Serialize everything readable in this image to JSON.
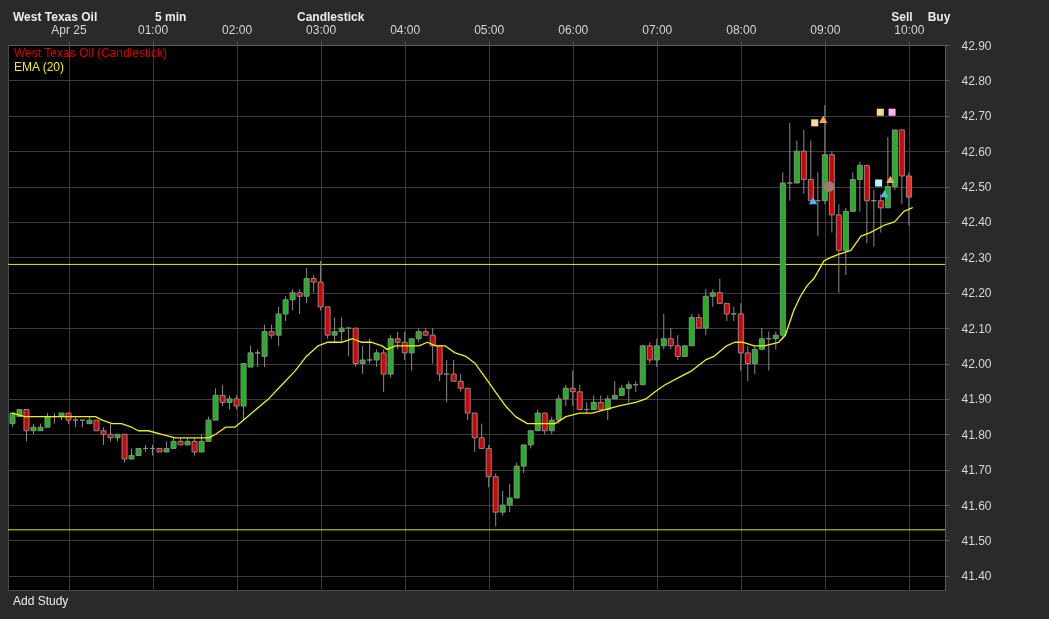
{
  "chart_data": {
    "type": "candlestick",
    "xlim": [
      -0.72,
      10.43
    ],
    "ylim": [
      41.36,
      42.9
    ],
    "xticks": [
      {
        "value": 0,
        "label": "Apr 25"
      },
      {
        "value": 1,
        "label": "01:00"
      },
      {
        "value": 2,
        "label": "02:00"
      },
      {
        "value": 3,
        "label": "03:00"
      },
      {
        "value": 4,
        "label": "04:00"
      },
      {
        "value": 5,
        "label": "05:00"
      },
      {
        "value": 6,
        "label": "06:00"
      },
      {
        "value": 7,
        "label": "07:00"
      },
      {
        "value": 8,
        "label": "08:00"
      },
      {
        "value": 9,
        "label": "09:00"
      },
      {
        "value": 10,
        "label": "10:00"
      }
    ],
    "yticks": [
      {
        "value": 41.4,
        "label": "41.40"
      },
      {
        "value": 41.5,
        "label": "41.50"
      },
      {
        "value": 41.6,
        "label": "41.60"
      },
      {
        "value": 41.7,
        "label": "41.70"
      },
      {
        "value": 41.8,
        "label": "41.80"
      },
      {
        "value": 41.9,
        "label": "41.90"
      },
      {
        "value": 42.0,
        "label": "42.00"
      },
      {
        "value": 42.1,
        "label": "42.10"
      },
      {
        "value": 42.2,
        "label": "42.20"
      },
      {
        "value": 42.3,
        "label": "42.30"
      },
      {
        "value": 42.4,
        "label": "42.40"
      },
      {
        "value": 42.5,
        "label": "42.50"
      },
      {
        "value": 42.6,
        "label": "42.60"
      },
      {
        "value": 42.7,
        "label": "42.70"
      },
      {
        "value": 42.8,
        "label": "42.80"
      },
      {
        "value": 42.9,
        "label": "42.90"
      }
    ],
    "grid": true,
    "legend": "top left",
    "ref_lines": [
      {
        "axis": "y",
        "value": 42.28,
        "color": "#e8e800"
      },
      {
        "axis": "y",
        "value": 41.53,
        "color": "#e8e800"
      }
    ],
    "annotations": [
      "West Texas Oil",
      "5 min",
      "Candlestick",
      "Sell",
      "Buy",
      "Add Study"
    ],
    "series": [
      {
        "name": "West Texas Oil (Candlestick)",
        "color": "#d80000",
        "x": [
          -0.6667,
          -0.5833,
          -0.5,
          -0.4167,
          -0.3333,
          -0.25,
          -0.1667,
          -0.0833,
          0,
          0.0833,
          0.1667,
          0.25,
          0.3333,
          0.4167,
          0.5,
          0.5833,
          0.6667,
          0.75,
          0.8333,
          0.9167,
          1,
          1.0833,
          1.1667,
          1.25,
          1.3333,
          1.4167,
          1.5,
          1.5833,
          1.6667,
          1.75,
          1.8333,
          1.9167,
          2,
          2.0833,
          2.1667,
          2.25,
          2.3333,
          2.4167,
          2.5,
          2.5833,
          2.6667,
          2.75,
          2.8333,
          2.9167,
          3,
          3.0833,
          3.1667,
          3.25,
          3.3333,
          3.4167,
          3.5,
          3.5833,
          3.6667,
          3.75,
          3.8333,
          3.9167,
          4,
          4.0833,
          4.1667,
          4.25,
          4.3333,
          4.4167,
          4.5,
          4.5833,
          4.6667,
          4.75,
          4.8333,
          4.9167,
          5,
          5.0833,
          5.1667,
          5.25,
          5.3333,
          5.4167,
          5.5,
          5.5833,
          5.6667,
          5.75,
          5.8333,
          5.9167,
          6,
          6.0833,
          6.1667,
          6.25,
          6.3333,
          6.4167,
          6.5,
          6.5833,
          6.6667,
          6.75,
          6.8333,
          6.9167,
          7,
          7.0833,
          7.1667,
          7.25,
          7.3333,
          7.4167,
          7.5,
          7.5833,
          7.6667,
          7.75,
          7.8333,
          7.9167,
          8,
          8.0833,
          8.1667,
          8.25,
          8.3333,
          8.4167,
          8.5,
          8.5833,
          8.6667,
          8.75,
          8.8333,
          8.9167,
          9,
          9.0833,
          9.1667,
          9.25,
          9.3333,
          9.4167,
          9.5,
          9.5833,
          9.6667,
          9.75,
          9.8333,
          9.9167,
          10
        ],
        "ohlc": [
          [
            41.83,
            41.86,
            41.82,
            41.86
          ],
          [
            41.85,
            41.87,
            41.85,
            41.87
          ],
          [
            41.87,
            41.87,
            41.78,
            41.81
          ],
          [
            41.81,
            41.83,
            41.8,
            41.82
          ],
          [
            41.81,
            41.83,
            41.81,
            41.82
          ],
          [
            41.82,
            41.86,
            41.82,
            41.85
          ],
          [
            41.85,
            41.86,
            41.83,
            41.85
          ],
          [
            41.85,
            41.86,
            41.84,
            41.86
          ],
          [
            41.86,
            41.86,
            41.83,
            41.84
          ],
          [
            41.84,
            41.85,
            41.82,
            41.84
          ],
          [
            41.84,
            41.84,
            41.82,
            41.84
          ],
          [
            41.83,
            41.85,
            41.83,
            41.84
          ],
          [
            41.84,
            41.84,
            41.81,
            41.81
          ],
          [
            41.81,
            41.82,
            41.77,
            41.8
          ],
          [
            41.8,
            41.83,
            41.78,
            41.79
          ],
          [
            41.79,
            41.8,
            41.78,
            41.8
          ],
          [
            41.8,
            41.8,
            41.72,
            41.73
          ],
          [
            41.73,
            41.76,
            41.73,
            41.74
          ],
          [
            41.74,
            41.76,
            41.74,
            41.76
          ],
          [
            41.76,
            41.77,
            41.75,
            41.76
          ],
          [
            41.76,
            41.77,
            41.74,
            41.76
          ],
          [
            41.76,
            41.76,
            41.75,
            41.75
          ],
          [
            41.75,
            41.78,
            41.75,
            41.76
          ],
          [
            41.76,
            41.79,
            41.76,
            41.78
          ],
          [
            41.78,
            41.79,
            41.77,
            41.77
          ],
          [
            41.77,
            41.79,
            41.77,
            41.78
          ],
          [
            41.78,
            41.79,
            41.74,
            41.75
          ],
          [
            41.75,
            41.8,
            41.75,
            41.78
          ],
          [
            41.78,
            41.85,
            41.78,
            41.84
          ],
          [
            41.84,
            41.93,
            41.84,
            41.91
          ],
          [
            41.91,
            41.94,
            41.88,
            41.89
          ],
          [
            41.89,
            41.91,
            41.87,
            41.9
          ],
          [
            41.9,
            41.91,
            41.87,
            41.88
          ],
          [
            41.88,
            42.0,
            41.84,
            42.0
          ],
          [
            41.99,
            42.05,
            41.99,
            42.03
          ],
          [
            42.03,
            42.04,
            41.99,
            42.03
          ],
          [
            42.02,
            42.11,
            41.99,
            42.09
          ],
          [
            42.09,
            42.11,
            42.07,
            42.08
          ],
          [
            42.08,
            42.16,
            42.05,
            42.14
          ],
          [
            42.14,
            42.19,
            42.12,
            42.18
          ],
          [
            42.18,
            42.21,
            42.15,
            42.2
          ],
          [
            42.2,
            42.21,
            42.14,
            42.19
          ],
          [
            42.19,
            42.27,
            42.17,
            42.24
          ],
          [
            42.24,
            42.25,
            42.2,
            42.23
          ],
          [
            42.23,
            42.29,
            42.15,
            42.16
          ],
          [
            42.16,
            42.16,
            42.07,
            42.08
          ],
          [
            42.08,
            42.13,
            42.06,
            42.09
          ],
          [
            42.09,
            42.13,
            42.06,
            42.1
          ],
          [
            42.1,
            42.1,
            42.02,
            42.1
          ],
          [
            42.1,
            42.1,
            41.99,
            42.0
          ],
          [
            42.0,
            42.05,
            41.97,
            42.01
          ],
          [
            42.01,
            42.07,
            42.0,
            42.01
          ],
          [
            42.01,
            42.04,
            41.99,
            42.03
          ],
          [
            42.03,
            42.04,
            41.92,
            41.97
          ],
          [
            41.97,
            42.08,
            41.96,
            42.07
          ],
          [
            42.07,
            42.09,
            42.04,
            42.06
          ],
          [
            42.06,
            42.09,
            42.01,
            42.03
          ],
          [
            42.03,
            42.07,
            41.98,
            42.07
          ],
          [
            42.07,
            42.1,
            42.06,
            42.09
          ],
          [
            42.09,
            42.1,
            42.08,
            42.08
          ],
          [
            42.08,
            42.1,
            42.0,
            42.05
          ],
          [
            42.05,
            42.05,
            41.95,
            41.97
          ],
          [
            41.97,
            42.01,
            41.89,
            41.97
          ],
          [
            41.97,
            42.01,
            41.95,
            41.95
          ],
          [
            41.95,
            41.97,
            41.92,
            41.93
          ],
          [
            41.93,
            41.93,
            41.84,
            41.86
          ],
          [
            41.86,
            41.86,
            41.75,
            41.79
          ],
          [
            41.79,
            41.83,
            41.76,
            41.76
          ],
          [
            41.76,
            41.77,
            41.65,
            41.68
          ],
          [
            41.68,
            41.69,
            41.54,
            41.58
          ],
          [
            41.58,
            41.64,
            41.57,
            41.6
          ],
          [
            41.6,
            41.66,
            41.58,
            41.62
          ],
          [
            41.62,
            41.72,
            41.62,
            41.71
          ],
          [
            41.71,
            41.77,
            41.69,
            41.77
          ],
          [
            41.77,
            41.81,
            41.76,
            41.81
          ],
          [
            41.81,
            41.87,
            41.81,
            41.86
          ],
          [
            41.86,
            41.86,
            41.8,
            41.81
          ],
          [
            41.81,
            41.85,
            41.8,
            41.84
          ],
          [
            41.84,
            41.91,
            41.83,
            41.9
          ],
          [
            41.9,
            41.94,
            41.88,
            41.93
          ],
          [
            41.93,
            41.98,
            41.88,
            41.92
          ],
          [
            41.92,
            41.94,
            41.87,
            41.87
          ],
          [
            41.87,
            41.89,
            41.86,
            41.87
          ],
          [
            41.87,
            41.91,
            41.87,
            41.89
          ],
          [
            41.89,
            41.91,
            41.87,
            41.87
          ],
          [
            41.87,
            41.91,
            41.84,
            41.9
          ],
          [
            41.9,
            41.95,
            41.9,
            41.91
          ],
          [
            41.91,
            41.94,
            41.91,
            41.93
          ],
          [
            41.93,
            41.95,
            41.89,
            41.94
          ],
          [
            41.94,
            41.95,
            41.92,
            41.94
          ],
          [
            41.94,
            42.05,
            41.94,
            42.05
          ],
          [
            42.05,
            42.06,
            42.0,
            42.01
          ],
          [
            42.01,
            42.07,
            41.99,
            42.05
          ],
          [
            42.05,
            42.14,
            42.04,
            42.07
          ],
          [
            42.07,
            42.1,
            42.04,
            42.05
          ],
          [
            42.05,
            42.08,
            42.01,
            42.02
          ],
          [
            42.02,
            42.05,
            42.02,
            42.05
          ],
          [
            42.05,
            42.14,
            42.05,
            42.13
          ],
          [
            42.13,
            42.14,
            42.1,
            42.1
          ],
          [
            42.1,
            42.21,
            42.08,
            42.19
          ],
          [
            42.19,
            42.21,
            42.16,
            42.2
          ],
          [
            42.2,
            42.24,
            42.17,
            42.17
          ],
          [
            42.17,
            42.17,
            42.12,
            42.14
          ],
          [
            42.14,
            42.16,
            42.12,
            42.14
          ],
          [
            42.14,
            42.17,
            41.98,
            42.03
          ],
          [
            42.03,
            42.05,
            41.95,
            42.0
          ],
          [
            42.0,
            42.05,
            41.97,
            42.04
          ],
          [
            42.04,
            42.1,
            42.04,
            42.07
          ],
          [
            42.07,
            42.09,
            41.98,
            42.07
          ],
          [
            42.07,
            42.09,
            42.04,
            42.08
          ],
          [
            42.08,
            42.54,
            42.07,
            42.51
          ],
          [
            42.51,
            42.68,
            42.46,
            42.51
          ],
          [
            42.51,
            42.63,
            42.51,
            42.6
          ],
          [
            42.6,
            42.66,
            42.48,
            42.52
          ],
          [
            42.52,
            42.63,
            42.45,
            42.46
          ],
          [
            42.46,
            42.54,
            42.36,
            42.46
          ],
          [
            42.46,
            42.73,
            42.45,
            42.59
          ],
          [
            42.59,
            42.6,
            42.37,
            42.42
          ],
          [
            42.42,
            42.45,
            42.2,
            42.32
          ],
          [
            42.32,
            42.44,
            42.25,
            42.43
          ],
          [
            42.43,
            42.54,
            42.43,
            42.52
          ],
          [
            42.52,
            42.57,
            42.43,
            42.56
          ],
          [
            42.56,
            42.56,
            42.34,
            42.46
          ],
          [
            42.46,
            42.49,
            42.33,
            42.46
          ],
          [
            42.46,
            42.48,
            42.37,
            42.44
          ],
          [
            42.44,
            42.64,
            42.44,
            42.5
          ],
          [
            42.5,
            42.66,
            42.49,
            42.66
          ],
          [
            42.66,
            42.66,
            42.45,
            42.53
          ],
          [
            42.53,
            42.54,
            42.39,
            42.47
          ]
        ],
        "colors": [
          "#1db51d",
          "#1db51d",
          "#d80000",
          "#1db51d",
          "#1db51d",
          "#1db51d",
          "#8a8a8a",
          "#1db51d",
          "#d80000",
          "#8a8a8a",
          "#8a8a8a",
          "#1db51d",
          "#d80000",
          "#d80000",
          "#d80000",
          "#1db51d",
          "#d80000",
          "#1db51d",
          "#1db51d",
          "#8a8a8a",
          "#8a8a8a",
          "#d80000",
          "#1db51d",
          "#1db51d",
          "#d80000",
          "#1db51d",
          "#d80000",
          "#1db51d",
          "#1db51d",
          "#1db51d",
          "#d80000",
          "#1db51d",
          "#d80000",
          "#1db51d",
          "#1db51d",
          "#8a8a8a",
          "#1db51d",
          "#d80000",
          "#1db51d",
          "#1db51d",
          "#1db51d",
          "#d80000",
          "#1db51d",
          "#d80000",
          "#d80000",
          "#d80000",
          "#1db51d",
          "#1db51d",
          "#8a8a8a",
          "#d80000",
          "#1db51d",
          "#8a8a8a",
          "#1db51d",
          "#d80000",
          "#1db51d",
          "#d80000",
          "#d80000",
          "#1db51d",
          "#1db51d",
          "#d80000",
          "#d80000",
          "#d80000",
          "#8a8a8a",
          "#d80000",
          "#d80000",
          "#d80000",
          "#d80000",
          "#d80000",
          "#d80000",
          "#d80000",
          "#1db51d",
          "#1db51d",
          "#1db51d",
          "#1db51d",
          "#1db51d",
          "#1db51d",
          "#d80000",
          "#1db51d",
          "#1db51d",
          "#1db51d",
          "#d80000",
          "#d80000",
          "#8a8a8a",
          "#1db51d",
          "#d80000",
          "#1db51d",
          "#1db51d",
          "#1db51d",
          "#1db51d",
          "#8a8a8a",
          "#1db51d",
          "#d80000",
          "#1db51d",
          "#1db51d",
          "#d80000",
          "#d80000",
          "#1db51d",
          "#1db51d",
          "#d80000",
          "#1db51d",
          "#1db51d",
          "#d80000",
          "#d80000",
          "#8a8a8a",
          "#d80000",
          "#d80000",
          "#1db51d",
          "#1db51d",
          "#8a8a8a",
          "#1db51d",
          "#1db51d",
          "#8a8a8a",
          "#1db51d",
          "#d80000",
          "#d80000",
          "#8a8a8a",
          "#1db51d",
          "#d80000",
          "#d80000",
          "#1db51d",
          "#1db51d",
          "#1db51d",
          "#d80000",
          "#8a8a8a",
          "#d80000",
          "#1db51d",
          "#1db51d",
          "#d80000",
          "#ff2020"
        ]
      },
      {
        "name": "EMA (20)",
        "type": "line",
        "color": "#f2f200",
        "x": [
          -0.67,
          -0.52,
          -0.36,
          -0.16,
          0.04,
          0.32,
          0.4,
          0.52,
          0.63,
          0.75,
          0.83,
          0.95,
          1.11,
          1.27,
          1.43,
          1.55,
          1.67,
          1.75,
          1.87,
          1.98,
          2.08,
          2.23,
          2.38,
          2.54,
          2.7,
          2.83,
          2.97,
          3.08,
          3.25,
          3.38,
          3.49,
          3.61,
          3.73,
          3.79,
          3.89,
          4.01,
          4.17,
          4.27,
          4.37,
          4.48,
          4.6,
          4.73,
          4.84,
          4.96,
          5.08,
          5.2,
          5.32,
          5.46,
          5.63,
          5.79,
          5.92,
          6.08,
          6.23,
          6.39,
          6.55,
          6.75,
          6.87,
          6.98,
          7.1,
          7.26,
          7.42,
          7.58,
          7.68,
          7.83,
          7.93,
          8.03,
          8.16,
          8.28,
          8.45,
          8.53,
          8.63,
          8.71,
          8.79,
          8.87,
          8.99,
          9.07,
          9.18,
          9.31,
          9.43,
          9.54,
          9.7,
          9.83,
          9.94,
          10.04
        ],
        "values": [
          41.86,
          41.85,
          41.85,
          41.85,
          41.85,
          41.85,
          41.84,
          41.83,
          41.83,
          41.82,
          41.81,
          41.81,
          41.8,
          41.79,
          41.79,
          41.79,
          41.79,
          41.8,
          41.82,
          41.82,
          41.84,
          41.87,
          41.9,
          41.94,
          41.98,
          42.02,
          42.05,
          42.06,
          42.06,
          42.07,
          42.06,
          42.06,
          42.05,
          42.04,
          42.05,
          42.05,
          42.05,
          42.06,
          42.05,
          42.05,
          42.03,
          42.02,
          42.0,
          41.96,
          41.92,
          41.88,
          41.85,
          41.83,
          41.83,
          41.83,
          41.85,
          41.86,
          41.86,
          41.87,
          41.88,
          41.89,
          41.9,
          41.92,
          41.94,
          41.96,
          41.98,
          42.01,
          42.02,
          42.05,
          42.06,
          42.06,
          42.05,
          42.05,
          42.06,
          42.08,
          42.15,
          42.19,
          42.22,
          42.24,
          42.29,
          42.3,
          42.31,
          42.32,
          42.36,
          42.37,
          42.39,
          42.4,
          42.43,
          42.44
        ]
      },
      {
        "type": "scatter",
        "marker": "square",
        "color": "#ffd99a",
        "x": [
          8.88,
          9.66
        ],
        "values": [
          42.68,
          42.71
        ]
      },
      {
        "type": "scatter",
        "marker": "square",
        "color": "#f7b3f2",
        "x": [
          9.8
        ],
        "values": [
          42.71
        ]
      },
      {
        "type": "scatter",
        "marker": "square",
        "color": "#b3f2ff",
        "x": [
          9.64
        ],
        "values": [
          42.51
        ]
      },
      {
        "type": "scatter",
        "marker": "triangle",
        "color": "#f5a55a",
        "x": [
          8.98,
          9.78
        ],
        "values": [
          42.69,
          42.52
        ]
      },
      {
        "type": "scatter",
        "marker": "triangle",
        "color": "#5cb0ec",
        "x": [
          8.86,
          9.71
        ],
        "values": [
          42.46,
          42.48
        ]
      },
      {
        "type": "scatter",
        "marker": "circle",
        "color": "#a07878",
        "x": [
          9.05
        ],
        "values": [
          42.5
        ]
      }
    ]
  }
}
